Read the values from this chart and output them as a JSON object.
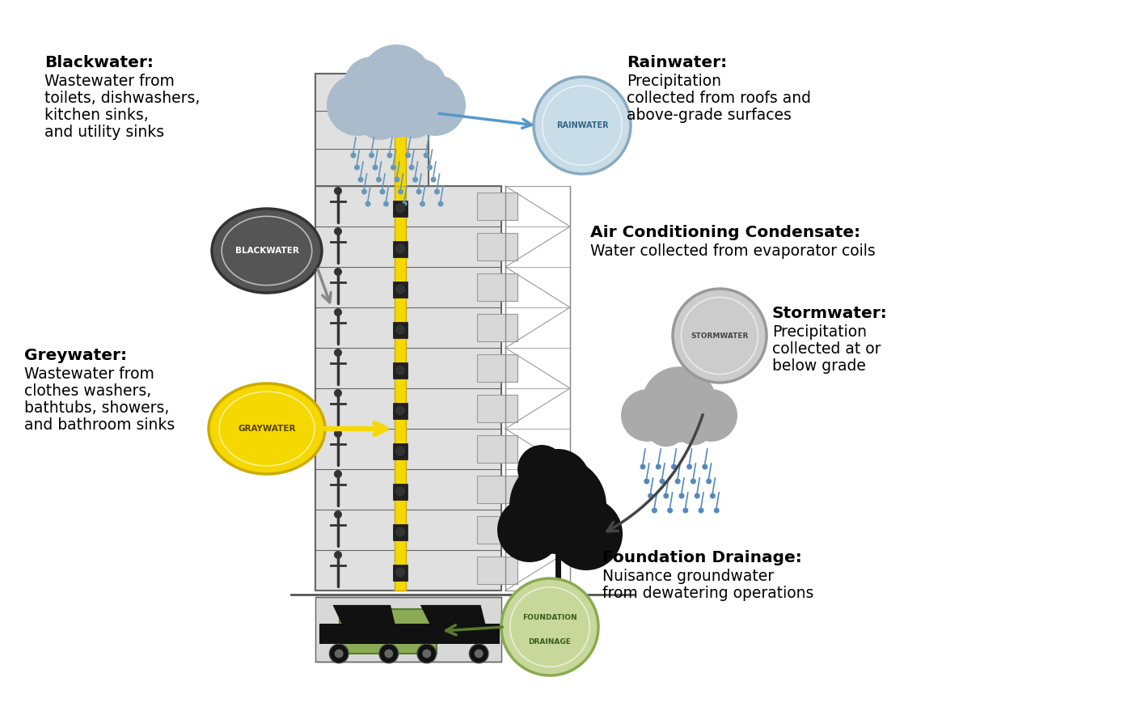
{
  "fig_width": 14.0,
  "fig_height": 8.74,
  "bg_color": "#ffffff",
  "blackwater_label": "Blackwater:",
  "blackwater_desc": "Wastewater from\ntoilets, dishwashers,\nkitchen sinks,\nand utility sinks",
  "blackwater_circle_color_outer": "#555555",
  "blackwater_circle_color_inner": "#888888",
  "blackwater_circle_label": "BLACKWATER",
  "greywater_label": "Greywater:",
  "greywater_desc": "Wastewater from\nclothes washers,\nbathtubs, showers,\nand bathroom sinks",
  "greywater_circle_color": "#f5d800",
  "greywater_circle_label": "GRAYWATER",
  "rainwater_label": "Rainwater:",
  "rainwater_desc": "Precipitation\ncollected from roofs and\nabove-grade surfaces",
  "rainwater_circle_color": "#c8dde8",
  "rainwater_border_color": "#88aac0",
  "rainwater_circle_label": "RAINWATER",
  "ac_label": "Air Conditioning Condensate:",
  "ac_desc": "Water collected from evaporator coils",
  "stormwater_label": "Stormwater:",
  "stormwater_desc": "Precipitation\ncollected at or\nbelow grade",
  "stormwater_circle_color": "#cccccc",
  "stormwater_border_color": "#999999",
  "stormwater_circle_label": "STORMWATER",
  "foundation_label": "Foundation Drainage:",
  "foundation_desc": "Nuisance groundwater\nfrom dewatering operations",
  "foundation_circle_color": "#c8d89a",
  "foundation_border_color": "#8aaa50",
  "foundation_circle_label": "FOUNDATION\nDRAINAGE",
  "building_color": "#e0e0e0",
  "building_outline": "#666666",
  "pipe_yellow": "#f5d800",
  "ground_color": "#555555",
  "grass_color": "#8aaa55",
  "car_color": "#111111"
}
